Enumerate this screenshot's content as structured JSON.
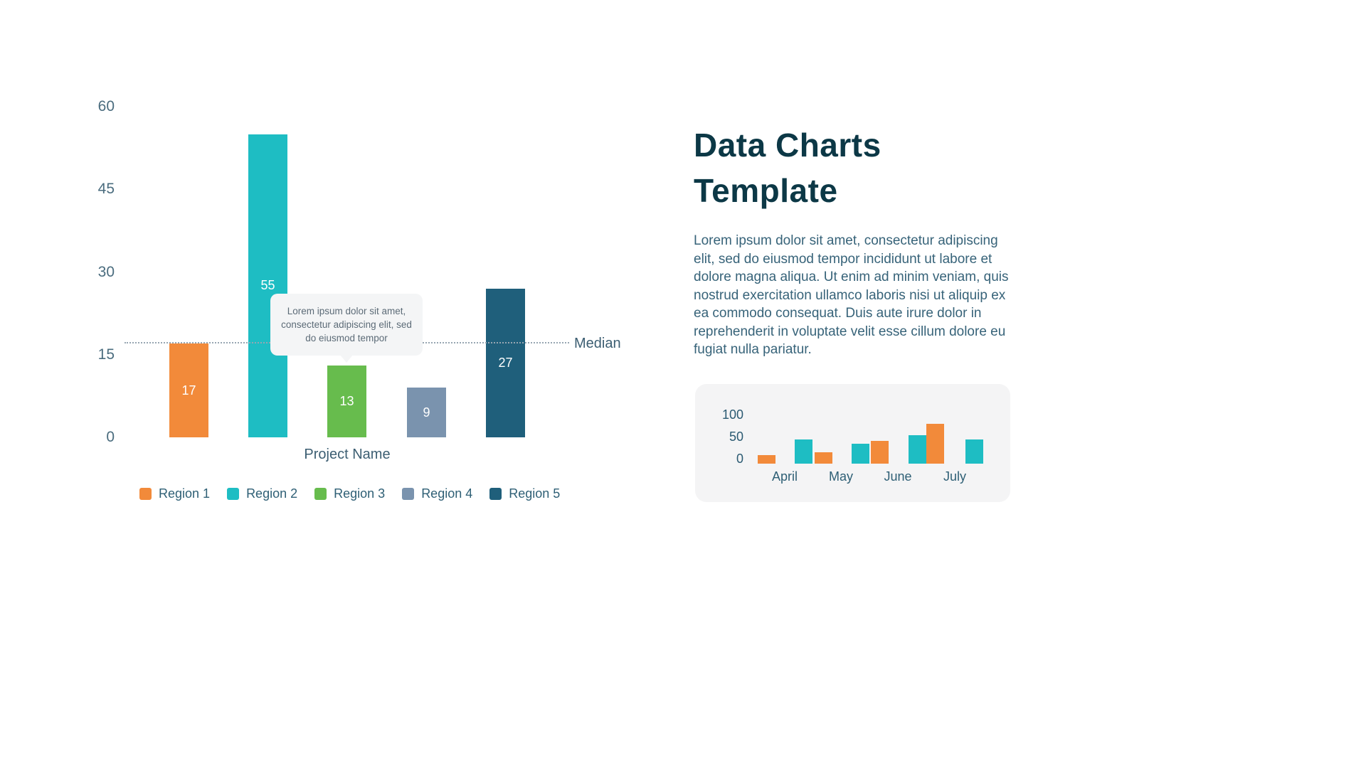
{
  "chart_data": [
    {
      "type": "bar",
      "title": "",
      "categories": [
        "Region 1",
        "Region 2",
        "Region 3",
        "Region 4",
        "Region 5"
      ],
      "values": [
        17,
        55,
        13,
        9,
        27
      ],
      "colors": [
        "#F28A3A",
        "#1EBDC3",
        "#67BC4D",
        "#7A93AE",
        "#1F5F7B"
      ],
      "xlabel": "Project Name",
      "ylabel": "",
      "ylim": [
        0,
        60
      ],
      "yticks": [
        0,
        15,
        30,
        45,
        60
      ],
      "grid": false,
      "legend_position": "bottom",
      "median_value": 17,
      "median_label": "Median",
      "tooltip": "Lorem ipsum dolor sit amet, consectetur adipiscing elit, sed do eiusmod tempor"
    },
    {
      "type": "bar",
      "title": "",
      "categories": [
        "April",
        "May",
        "June",
        "July"
      ],
      "yticks": [
        0,
        50,
        100
      ],
      "ylim": [
        0,
        100
      ],
      "grid": false,
      "series_colors": {
        "orange": "#F28A3A",
        "teal": "#1EBDC3"
      },
      "bars": [
        {
          "series": "orange",
          "value": 20
        },
        {
          "series": "teal",
          "value": 55
        },
        {
          "series": "orange",
          "value": 26
        },
        {
          "series": "teal",
          "value": 45
        },
        {
          "series": "orange",
          "value": 52
        },
        {
          "series": "teal",
          "value": 65
        },
        {
          "series": "orange",
          "value": 90
        },
        {
          "series": "teal",
          "value": 55
        }
      ]
    }
  ],
  "right": {
    "title_line1": "Data Charts",
    "title_line2": "Template",
    "paragraph": "Lorem ipsum dolor sit amet, consectetur adipiscing elit, sed do eiusmod tempor incididunt ut labore et dolore magna aliqua. Ut enim ad minim veniam, quis nostrud exercitation ullamco laboris nisi ut aliquip ex ea commodo consequat. Duis aute irure dolor in reprehenderit in voluptate velit esse cillum dolore eu fugiat nulla pariatur."
  }
}
